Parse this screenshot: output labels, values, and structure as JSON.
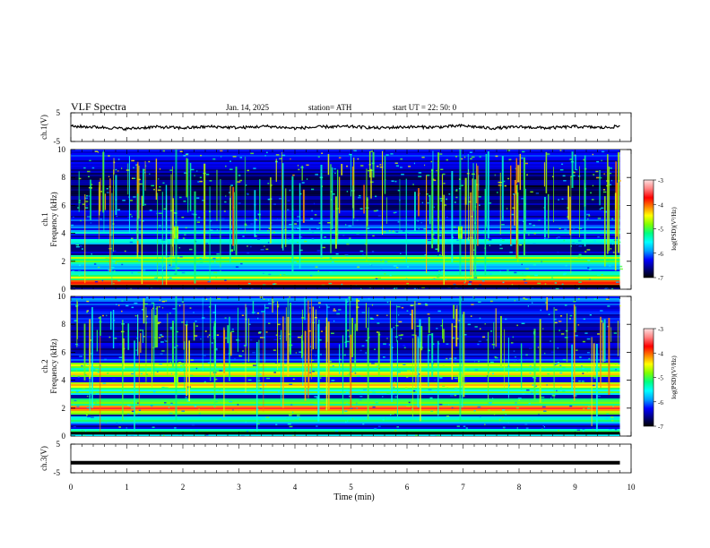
{
  "header": {
    "title": "VLF  Spectra",
    "date": "Jan. 14, 2025",
    "station": "station= ATH",
    "start": "start  UT  =   22: 50: 0"
  },
  "colorbar": {
    "label": "log(PSD)(V²/Hz)",
    "ticks": [
      "-3",
      "-4",
      "-5",
      "-6",
      "-7"
    ],
    "stops": [
      "#000000",
      "#000080",
      "#0000ff",
      "#00a0ff",
      "#00ffff",
      "#00ff80",
      "#80ff00",
      "#ffff00",
      "#ff8000",
      "#ff0000",
      "#ff8080",
      "#ffe0e0"
    ]
  },
  "chart_data": [
    {
      "type": "line",
      "name": "ch1-time-series",
      "ylabel": "ch.1(V)",
      "yticks": [
        "5",
        "-5"
      ],
      "ylim": [
        -5,
        5
      ],
      "xlim": [
        0,
        10
      ],
      "x": [
        0.0,
        0.5,
        1.0,
        1.5,
        2.0,
        2.5,
        3.0,
        3.5,
        4.0,
        4.5,
        5.0,
        5.5,
        6.0,
        6.5,
        7.0,
        7.5,
        8.0,
        8.5,
        9.0,
        9.5,
        9.8
      ],
      "values": [
        0.3,
        0.0,
        -0.6,
        0.1,
        -0.3,
        0.2,
        -0.2,
        0.3,
        -0.4,
        0.1,
        0.2,
        -0.3,
        0.1,
        0.0,
        0.5,
        -0.4,
        0.1,
        -0.3,
        0.2,
        -0.2,
        0.3
      ],
      "color": "#000000"
    },
    {
      "type": "heatmap",
      "name": "ch1-spectrogram",
      "ylabel": "ch.1\nFrequency  (kHz)",
      "yticks": [
        "0",
        "2",
        "4",
        "6",
        "8",
        "10"
      ],
      "ylim": [
        0,
        10
      ],
      "xlim": [
        0,
        10
      ],
      "data_end_min": 9.8,
      "bands_khz": [
        {
          "f": 0.15,
          "level": -6.5
        },
        {
          "f": 0.5,
          "level": -3.5
        },
        {
          "f": 0.9,
          "level": -4.6
        },
        {
          "f": 1.2,
          "level": -5.2
        },
        {
          "f": 1.6,
          "level": -5.5
        },
        {
          "f": 2.0,
          "level": -4.8
        },
        {
          "f": 2.3,
          "level": -4.5
        },
        {
          "f": 3.5,
          "level": -5.2
        },
        {
          "f": 4.1,
          "level": -5.5
        },
        {
          "f": 4.5,
          "level": -5.8
        },
        {
          "f": 5.0,
          "level": -5.9
        },
        {
          "f": 5.6,
          "level": -6.0
        }
      ],
      "bursts_min": [
        1.88,
        6.95
      ]
    },
    {
      "type": "heatmap",
      "name": "ch2-spectrogram",
      "ylabel": "ch.2\nFrequency  (kHz)",
      "yticks": [
        "0",
        "2",
        "4",
        "6",
        "8",
        "10"
      ],
      "ylim": [
        0,
        10
      ],
      "xlim": [
        0,
        10
      ],
      "data_end_min": 9.8,
      "bands_khz": [
        {
          "f": 0.3,
          "level": -4.8
        },
        {
          "f": 1.2,
          "level": -5.0
        },
        {
          "f": 1.8,
          "level": -4.5
        },
        {
          "f": 2.05,
          "level": -3.6
        },
        {
          "f": 2.5,
          "level": -4.5
        },
        {
          "f": 3.2,
          "level": -5.0
        },
        {
          "f": 3.7,
          "level": -4.2
        },
        {
          "f": 4.5,
          "level": -4.3
        },
        {
          "f": 5.1,
          "level": -4.4
        },
        {
          "f": 5.5,
          "level": -5.9
        }
      ],
      "bursts_min": [
        1.88,
        6.95
      ]
    },
    {
      "type": "line",
      "name": "ch3-time-series",
      "ylabel": "ch.3(V)",
      "yticks": [
        "5",
        "-5"
      ],
      "ylim": [
        -5,
        5
      ],
      "xlim": [
        0,
        10
      ],
      "x": [
        0,
        9.8
      ],
      "values": [
        -1.5,
        -1.5
      ],
      "color": "#000000"
    }
  ],
  "xaxis": {
    "label": "Time  (min)",
    "ticks": [
      "0",
      "1",
      "2",
      "3",
      "4",
      "5",
      "6",
      "7",
      "8",
      "9",
      "10"
    ],
    "xlim": [
      0,
      10
    ]
  }
}
